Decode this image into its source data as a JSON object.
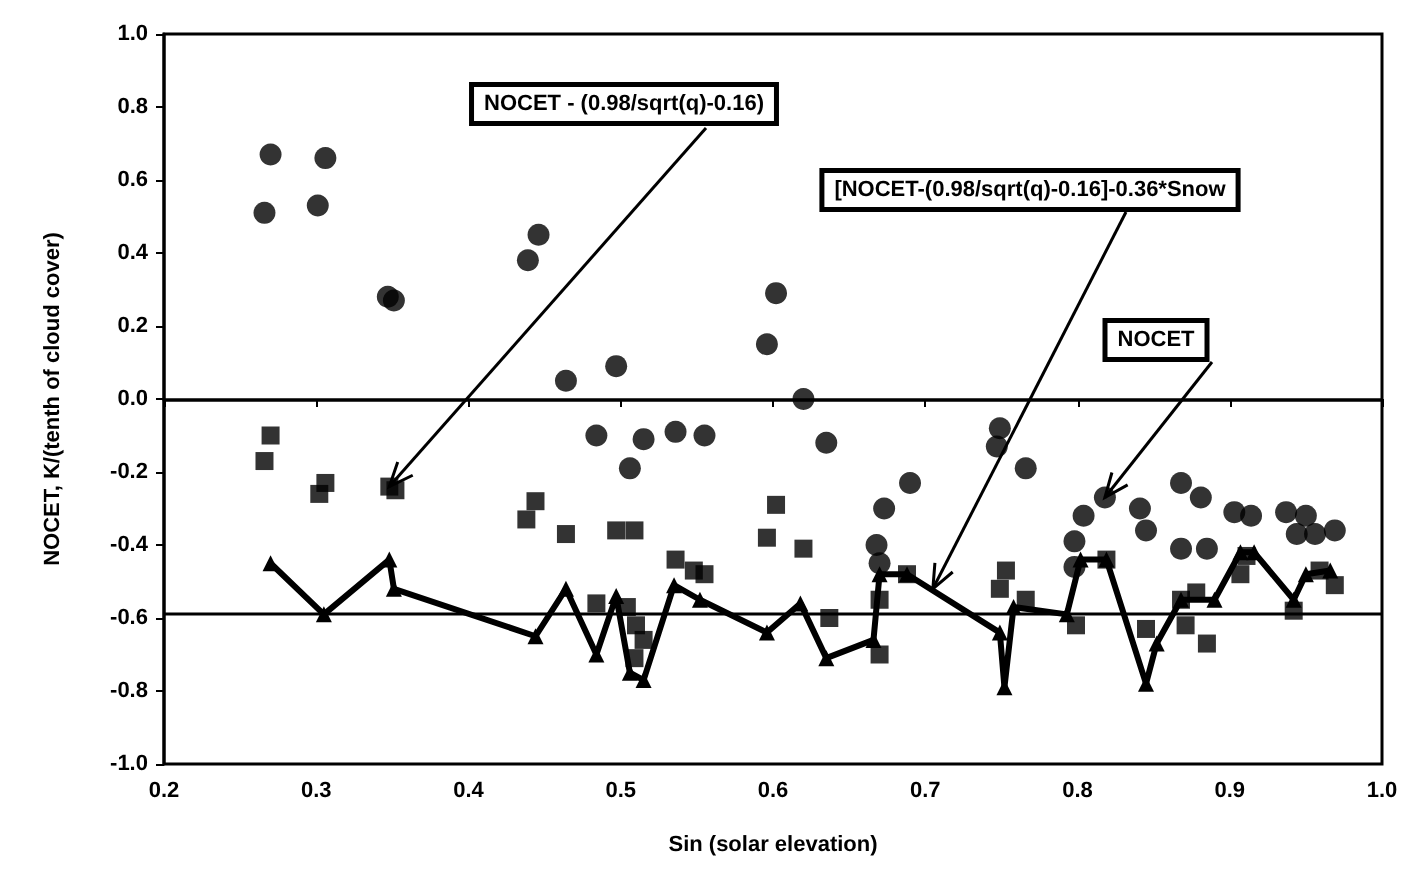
{
  "chart_data": {
    "type": "scatter",
    "xlabel": "Sin (solar elevation)",
    "ylabel": "NOCET, K/(tenth of cloud cover)",
    "xlim": [
      0.2,
      1.0
    ],
    "ylim": [
      -1.0,
      1.0
    ],
    "xticks": [
      0.2,
      0.3,
      0.4,
      0.5,
      0.6,
      0.7,
      0.8,
      0.9,
      {
        "value": 1.0,
        "label": "1.0"
      }
    ],
    "yticks": [
      {
        "value": -1.0,
        "label": "-1.0"
      },
      -0.8,
      -0.6,
      -0.4,
      -0.2,
      {
        "value": 0.0,
        "label": "0.0"
      },
      0.2,
      0.4,
      0.6,
      0.8,
      {
        "value": 1.0,
        "label": "1.0"
      }
    ],
    "grid": false,
    "ref_lines": [
      {
        "axis": "y",
        "value": 0,
        "color": "#000000"
      },
      {
        "axis": "y",
        "value": -0.59,
        "color": "#000000"
      }
    ],
    "annotations": [
      {
        "text": "NOCET - (0.98/sqrt(q)-0.16)",
        "x": 0.348,
        "y": -0.24
      },
      {
        "text": "[NOCET-(0.98/sqrt(q)-0.16]-0.36*Snow",
        "x": 0.705,
        "y": -0.52
      },
      {
        "text": "NOCET",
        "x": 0.818,
        "y": -0.27
      }
    ],
    "series": [
      {
        "marker": "circle",
        "color": "#000000",
        "x": [
          0.27,
          0.266,
          0.306,
          0.301,
          0.347,
          0.351,
          0.439,
          0.446,
          0.464,
          0.497,
          0.484,
          0.506,
          0.515,
          0.536,
          0.555,
          0.602,
          0.596,
          0.62,
          0.635,
          0.69,
          0.673,
          0.668,
          0.67,
          0.749,
          0.747,
          0.766,
          0.798,
          0.798,
          0.804,
          0.818,
          0.841,
          0.845,
          0.868,
          0.881,
          0.868,
          0.885,
          0.903,
          0.914,
          0.937,
          0.95,
          0.944,
          0.969,
          0.956
        ],
        "values": [
          0.67,
          0.51,
          0.66,
          0.53,
          0.28,
          0.27,
          0.38,
          0.45,
          0.05,
          0.09,
          -0.1,
          -0.19,
          -0.11,
          -0.09,
          -0.1,
          0.29,
          0.15,
          0.0,
          -0.12,
          -0.23,
          -0.3,
          -0.4,
          -0.45,
          -0.08,
          -0.13,
          -0.19,
          -0.39,
          -0.46,
          -0.32,
          -0.27,
          -0.3,
          -0.36,
          -0.23,
          -0.27,
          -0.41,
          -0.41,
          -0.31,
          -0.32,
          -0.31,
          -0.32,
          -0.37,
          -0.36,
          -0.37
        ]
      },
      {
        "marker": "square",
        "color": "#000000",
        "x": [
          0.27,
          0.266,
          0.306,
          0.302,
          0.348,
          0.352,
          0.444,
          0.438,
          0.464,
          0.497,
          0.509,
          0.536,
          0.555,
          0.484,
          0.504,
          0.51,
          0.515,
          0.509,
          0.602,
          0.596,
          0.62,
          0.548,
          0.637,
          0.67,
          0.67,
          0.688,
          0.753,
          0.749,
          0.766,
          0.799,
          0.819,
          0.845,
          0.868,
          0.871,
          0.885,
          0.878,
          0.911,
          0.907,
          0.942,
          0.959,
          0.969
        ],
        "values": [
          -0.1,
          -0.17,
          -0.23,
          -0.26,
          -0.24,
          -0.25,
          -0.28,
          -0.33,
          -0.37,
          -0.36,
          -0.36,
          -0.44,
          -0.48,
          -0.56,
          -0.57,
          -0.62,
          -0.66,
          -0.71,
          -0.29,
          -0.38,
          -0.41,
          -0.47,
          -0.6,
          -0.55,
          -0.7,
          -0.48,
          -0.47,
          -0.52,
          -0.55,
          -0.62,
          -0.44,
          -0.63,
          -0.55,
          -0.62,
          -0.67,
          -0.53,
          -0.43,
          -0.48,
          -0.58,
          -0.47,
          -0.51
        ]
      },
      {
        "type": "line",
        "marker": "triangle",
        "line_style": "solid",
        "color": "#000000",
        "x": [
          0.27,
          0.305,
          0.348,
          0.351,
          0.444,
          0.464,
          0.484,
          0.497,
          0.506,
          0.515,
          0.535,
          0.552,
          0.596,
          0.618,
          0.635,
          0.666,
          0.67,
          0.688,
          0.749,
          0.752,
          0.758,
          0.793,
          0.802,
          0.819,
          0.845,
          0.852,
          0.868,
          0.89,
          0.907,
          0.916,
          0.942,
          0.95,
          0.966
        ],
        "values": [
          -0.45,
          -0.59,
          -0.44,
          -0.52,
          -0.65,
          -0.52,
          -0.7,
          -0.54,
          -0.75,
          -0.77,
          -0.51,
          -0.55,
          -0.64,
          -0.56,
          -0.71,
          -0.66,
          -0.48,
          -0.48,
          -0.64,
          -0.79,
          -0.57,
          -0.59,
          -0.44,
          -0.44,
          -0.78,
          -0.67,
          -0.55,
          -0.55,
          -0.42,
          -0.42,
          -0.55,
          -0.48,
          -0.47
        ]
      }
    ]
  }
}
